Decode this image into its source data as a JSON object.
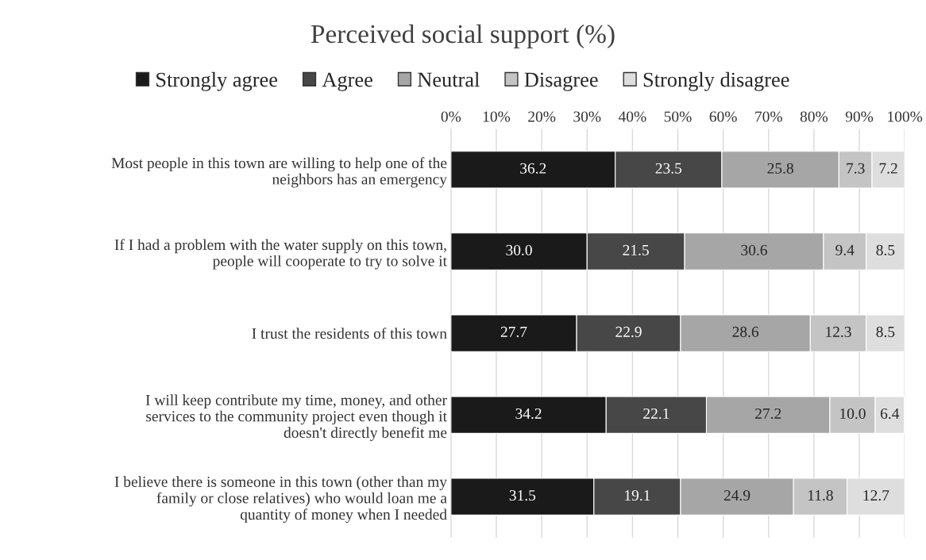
{
  "chart_data": {
    "type": "bar",
    "orientation": "horizontal",
    "stacked": true,
    "title": "Perceived social support (%)",
    "categories": [
      "Most people in this town are willing to help one of the\nneighbors has an emergency",
      "If I had a problem with the water supply on this town,\npeople will cooperate to try to solve it",
      "I trust the residents of this town",
      "I will keep contribute my time, money, and other\nservices to the community project even though it\ndoesn't directly benefit me",
      "I believe there is someone in this town (other than my\nfamily or close relatives) who would loan me a\nquantity of money when I needed"
    ],
    "series": [
      {
        "name": "Strongly agree",
        "color": "#1a1a1a",
        "values": [
          36.2,
          30.0,
          27.7,
          34.2,
          31.5
        ],
        "value_labels": [
          "36.2",
          "30.0",
          "27.7",
          "34.2",
          "31.5"
        ]
      },
      {
        "name": "Agree",
        "color": "#474747",
        "values": [
          23.5,
          21.5,
          22.9,
          22.1,
          19.1
        ],
        "value_labels": [
          "23.5",
          "21.5",
          "22.9",
          "22.1",
          "19.1"
        ]
      },
      {
        "name": "Neutral",
        "color": "#a6a6a6",
        "values": [
          25.8,
          30.6,
          28.6,
          27.2,
          24.9
        ],
        "value_labels": [
          "25.8",
          "30.6",
          "28.6",
          "27.2",
          "24.9"
        ]
      },
      {
        "name": "Disagree",
        "color": "#c4c4c4",
        "values": [
          7.3,
          9.4,
          12.3,
          10.0,
          11.8
        ],
        "value_labels": [
          "7.3",
          "9.4",
          "12.3",
          "10.0",
          "11.8"
        ]
      },
      {
        "name": "Strongly disagree",
        "color": "#dedede",
        "values": [
          7.2,
          8.5,
          8.5,
          6.4,
          12.7
        ],
        "value_labels": [
          "7.2",
          "8.5",
          "8.5",
          "6.4",
          "12.7"
        ]
      }
    ],
    "xlim": [
      0,
      100
    ],
    "xticks": [
      {
        "value": 0,
        "label": "0%"
      },
      {
        "value": 10,
        "label": "10%"
      },
      {
        "value": 20,
        "label": "20%"
      },
      {
        "value": 30,
        "label": "30%"
      },
      {
        "value": 40,
        "label": "40%"
      },
      {
        "value": 50,
        "label": "50%"
      },
      {
        "value": 60,
        "label": "60%"
      },
      {
        "value": 70,
        "label": "70%"
      },
      {
        "value": 80,
        "label": "80%"
      },
      {
        "value": 90,
        "label": "90%"
      },
      {
        "value": 100,
        "label": "100%"
      }
    ],
    "grid": "x",
    "legend": "top"
  }
}
